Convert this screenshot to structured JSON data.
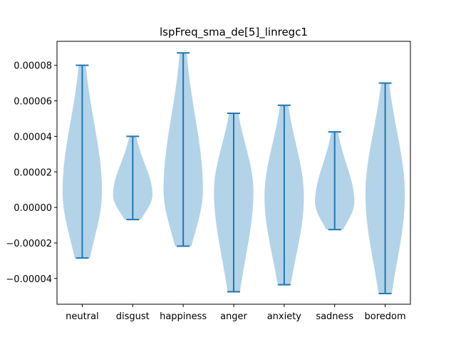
{
  "chart_data": {
    "type": "violin",
    "title": "lspFreq_sma_de[5]_linregc1",
    "xlabel": "",
    "ylabel": "",
    "categories": [
      "neutral",
      "disgust",
      "happiness",
      "anger",
      "anxiety",
      "sadness",
      "boredom"
    ],
    "ylim": [
      -5.45e-05,
      9.35e-05
    ],
    "yticks": [
      -4e-05,
      -2e-05,
      0.0,
      2e-05,
      4e-05,
      6e-05,
      8e-05
    ],
    "ytick_labels": [
      "−0.00004",
      "−0.00002",
      "0.00000",
      "0.00002",
      "0.00004",
      "0.00006",
      "0.00008"
    ],
    "grid": false,
    "violins": [
      {
        "category": "neutral",
        "min": -2.85e-05,
        "max": 8e-05,
        "mode": 9e-06,
        "max_half_width": 0.39
      },
      {
        "category": "disgust",
        "min": -6.8e-06,
        "max": 4e-05,
        "mode": 7e-06,
        "max_half_width": 0.39
      },
      {
        "category": "happiness",
        "min": -2.18e-05,
        "max": 8.7e-05,
        "mode": 1e-05,
        "max_half_width": 0.39
      },
      {
        "category": "anger",
        "min": -4.75e-05,
        "max": 5.3e-05,
        "mode": 9e-06,
        "max_half_width": 0.39
      },
      {
        "category": "anxiety",
        "min": -4.35e-05,
        "max": 5.75e-05,
        "mode": 6e-06,
        "max_half_width": 0.39
      },
      {
        "category": "sadness",
        "min": -1.25e-05,
        "max": 4.25e-05,
        "mode": 3e-06,
        "max_half_width": 0.39
      },
      {
        "category": "boredom",
        "min": -4.85e-05,
        "max": 7e-05,
        "mode": 7e-06,
        "max_half_width": 0.39
      }
    ],
    "colors": {
      "body": "#b3d3e8",
      "line": "#1f77b4",
      "axes": "#000000"
    }
  }
}
